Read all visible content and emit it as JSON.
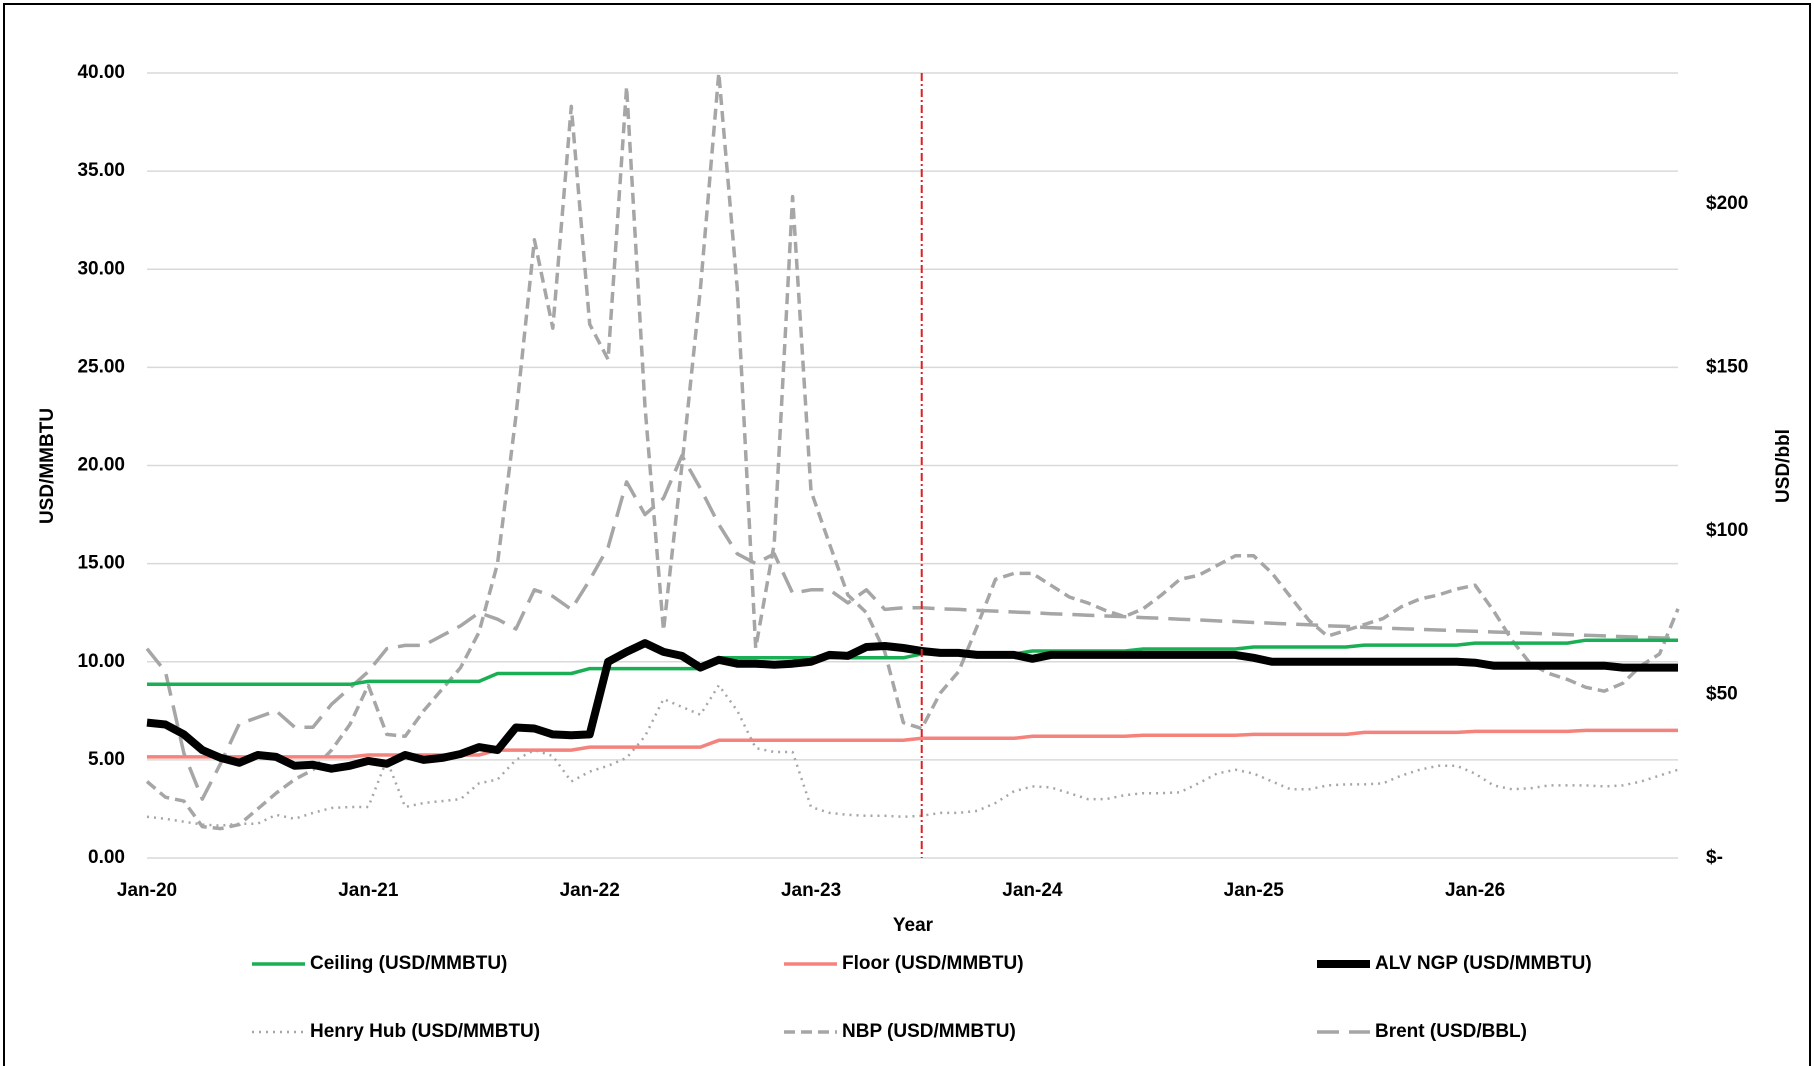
{
  "chart_data": {
    "type": "line",
    "x_label": "Year",
    "y_label": "USD/MMBTU",
    "y2_label": "USD/bbl",
    "categories": [
      "Jan-20",
      null,
      null,
      null,
      null,
      null,
      null,
      null,
      null,
      null,
      null,
      null,
      "Jan-21",
      null,
      null,
      null,
      null,
      null,
      null,
      null,
      null,
      null,
      null,
      null,
      "Jan-22",
      null,
      null,
      null,
      null,
      null,
      null,
      null,
      null,
      null,
      null,
      null,
      "Jan-23",
      null,
      null,
      null,
      null,
      null,
      null,
      null,
      null,
      null,
      null,
      null,
      "Jan-24",
      null,
      null,
      null,
      null,
      null,
      null,
      null,
      null,
      null,
      null,
      null,
      "Jan-25",
      null,
      null,
      null,
      null,
      null,
      null,
      null,
      null,
      null,
      null,
      null,
      "Jan-26",
      null,
      null,
      null,
      null,
      null,
      null,
      null,
      null,
      null,
      null,
      null
    ],
    "ylim": [
      0,
      40
    ],
    "yticks": [
      {
        "value": 0,
        "label": "0.00"
      },
      {
        "value": 5,
        "label": "5.00"
      },
      {
        "value": 10,
        "label": "10.00"
      },
      {
        "value": 15,
        "label": "15.00"
      },
      {
        "value": 20,
        "label": "20.00"
      },
      {
        "value": 25,
        "label": "25.00"
      },
      {
        "value": 30,
        "label": "30.00"
      },
      {
        "value": 35,
        "label": "35.00"
      },
      {
        "value": 40,
        "label": "40.00"
      }
    ],
    "y2lim": [
      0,
      240
    ],
    "y2ticks": [
      {
        "value": 0,
        "label": "$-"
      },
      {
        "value": 50,
        "label": "$50"
      },
      {
        "value": 100,
        "label": "$100"
      },
      {
        "value": 150,
        "label": "$150"
      },
      {
        "value": 200,
        "label": "$200"
      }
    ],
    "grid": true,
    "reference_line": {
      "category_index": 42,
      "color": "#e02020"
    },
    "series": [
      {
        "name": "Ceiling (USD/MMBTU)",
        "color": "#1aaf54",
        "line_style": "solid",
        "values": [
          8.85,
          8.85,
          8.85,
          8.85,
          8.85,
          8.85,
          8.85,
          8.85,
          8.85,
          8.85,
          8.85,
          8.85,
          9.0,
          9.0,
          9.0,
          9.0,
          9.0,
          9.0,
          9.0,
          9.4,
          9.4,
          9.4,
          9.4,
          9.4,
          9.65,
          9.65,
          9.65,
          9.65,
          9.65,
          9.65,
          9.65,
          10.2,
          10.2,
          10.2,
          10.2,
          10.2,
          10.2,
          10.2,
          10.2,
          10.2,
          10.2,
          10.2,
          10.4,
          10.4,
          10.4,
          10.4,
          10.4,
          10.4,
          10.55,
          10.55,
          10.55,
          10.55,
          10.55,
          10.55,
          10.65,
          10.65,
          10.65,
          10.65,
          10.65,
          10.65,
          10.75,
          10.75,
          10.75,
          10.75,
          10.75,
          10.75,
          10.85,
          10.85,
          10.85,
          10.85,
          10.85,
          10.85,
          10.95,
          10.95,
          10.95,
          10.95,
          10.95,
          10.95,
          11.1,
          11.1,
          11.1,
          11.1,
          11.1,
          11.1
        ]
      },
      {
        "name": "Floor (USD/MMBTU)",
        "color": "#f4837d",
        "line_style": "solid",
        "values": [
          5.15,
          5.15,
          5.15,
          5.15,
          5.15,
          5.15,
          5.15,
          5.15,
          5.15,
          5.15,
          5.15,
          5.15,
          5.25,
          5.25,
          5.25,
          5.25,
          5.25,
          5.25,
          5.25,
          5.5,
          5.5,
          5.5,
          5.5,
          5.5,
          5.65,
          5.65,
          5.65,
          5.65,
          5.65,
          5.65,
          5.65,
          6.0,
          6.0,
          6.0,
          6.0,
          6.0,
          6.0,
          6.0,
          6.0,
          6.0,
          6.0,
          6.0,
          6.1,
          6.1,
          6.1,
          6.1,
          6.1,
          6.1,
          6.2,
          6.2,
          6.2,
          6.2,
          6.2,
          6.2,
          6.25,
          6.25,
          6.25,
          6.25,
          6.25,
          6.25,
          6.3,
          6.3,
          6.3,
          6.3,
          6.3,
          6.3,
          6.4,
          6.4,
          6.4,
          6.4,
          6.4,
          6.4,
          6.45,
          6.45,
          6.45,
          6.45,
          6.45,
          6.45,
          6.5,
          6.5,
          6.5,
          6.5,
          6.5,
          6.5
        ]
      },
      {
        "name": "ALV NGP  (USD/MMBTU)",
        "color": "#000000",
        "line_style": "thick",
        "values": [
          6.9,
          6.8,
          6.3,
          5.5,
          5.1,
          4.85,
          5.25,
          5.15,
          4.7,
          4.75,
          4.55,
          4.7,
          4.95,
          4.8,
          5.25,
          5.0,
          5.1,
          5.3,
          5.65,
          5.5,
          6.65,
          6.6,
          6.3,
          6.25,
          6.3,
          10.0,
          10.5,
          10.95,
          10.5,
          10.3,
          9.7,
          10.1,
          9.9,
          9.9,
          9.85,
          9.9,
          10.0,
          10.35,
          10.3,
          10.75,
          10.8,
          10.7,
          10.55,
          10.45,
          10.45,
          10.35,
          10.35,
          10.35,
          10.15,
          10.35,
          10.35,
          10.35,
          10.35,
          10.35,
          10.35,
          10.35,
          10.35,
          10.35,
          10.35,
          10.35,
          10.2,
          10.0,
          10.0,
          10.0,
          10.0,
          10.0,
          10.0,
          10.0,
          10.0,
          10.0,
          10.0,
          10.0,
          9.95,
          9.8,
          9.8,
          9.8,
          9.8,
          9.8,
          9.8,
          9.8,
          9.7,
          9.7,
          9.7,
          9.7
        ]
      },
      {
        "name": "Henry Hub (USD/MMBTU)",
        "color": "#a6a6a6",
        "line_style": "dotted",
        "values": [
          2.1,
          2.0,
          1.85,
          1.7,
          1.65,
          1.75,
          1.75,
          2.2,
          2.0,
          2.3,
          2.55,
          2.6,
          2.6,
          5.0,
          2.6,
          2.8,
          2.9,
          3.0,
          3.8,
          4.0,
          5.0,
          5.5,
          5.2,
          3.9,
          4.4,
          4.7,
          5.1,
          6.2,
          8.1,
          7.7,
          7.3,
          8.8,
          7.5,
          5.6,
          5.4,
          5.4,
          2.6,
          2.3,
          2.2,
          2.15,
          2.15,
          2.1,
          2.15,
          2.3,
          2.3,
          2.4,
          2.8,
          3.4,
          3.65,
          3.6,
          3.3,
          3.0,
          3.0,
          3.2,
          3.3,
          3.3,
          3.35,
          3.8,
          4.3,
          4.5,
          4.3,
          3.9,
          3.5,
          3.5,
          3.7,
          3.75,
          3.75,
          3.8,
          4.2,
          4.5,
          4.7,
          4.7,
          4.3,
          3.7,
          3.5,
          3.55,
          3.7,
          3.7,
          3.7,
          3.65,
          3.7,
          3.9,
          4.2,
          4.5
        ]
      },
      {
        "name": "NBP (USD/MMBTU)",
        "color": "#a6a6a6",
        "line_style": "dashed",
        "values": [
          3.9,
          3.1,
          2.9,
          1.6,
          1.5,
          1.7,
          2.5,
          3.3,
          4.0,
          4.5,
          5.5,
          6.8,
          8.8,
          6.3,
          6.2,
          7.5,
          8.6,
          9.7,
          11.5,
          15.0,
          22.5,
          31.5,
          27,
          38.3,
          27.2,
          25.4,
          39.3,
          23,
          11.6,
          20,
          29,
          40,
          29,
          10.7,
          16,
          33.7,
          18.7,
          16,
          13.4,
          12.5,
          10.5,
          6.9,
          6.6,
          8.4,
          9.5,
          11.8,
          14.2,
          14.5,
          14.5,
          13.9,
          13.3,
          13.0,
          12.6,
          12.3,
          12.7,
          13.4,
          14.2,
          14.4,
          14.9,
          15.4,
          15.4,
          14.5,
          13.3,
          12.1,
          11.3,
          11.6,
          11.9,
          12.2,
          12.8,
          13.2,
          13.4,
          13.7,
          13.9,
          12.6,
          11.1,
          9.9,
          9.4,
          9.1,
          8.7,
          8.5,
          8.9,
          9.8,
          10.4,
          12.7
        ]
      },
      {
        "name": "Brent (USD/BBL)",
        "color": "#a6a6a6",
        "line_style": "long-dashed",
        "axis": "y2",
        "values": [
          64,
          57,
          32,
          18,
          29,
          41,
          43,
          45,
          40,
          40,
          47,
          52,
          57,
          64,
          65,
          65,
          68,
          71,
          75,
          73,
          70,
          82,
          80,
          76,
          85,
          95,
          115,
          105,
          110,
          123,
          113,
          102,
          93,
          90,
          93,
          81,
          82,
          82,
          78,
          82,
          76,
          76.5,
          76.5,
          76.2,
          76,
          75.7,
          75.5,
          75.2,
          75,
          74.7,
          74.5,
          74.2,
          74,
          73.8,
          73.5,
          73.3,
          73,
          72.8,
          72.5,
          72.3,
          72,
          71.8,
          71.5,
          71.3,
          71,
          70.8,
          70.5,
          70.3,
          70.1,
          69.9,
          69.7,
          69.5,
          69.3,
          69.1,
          68.9,
          68.7,
          68.5,
          68.3,
          68.1,
          67.9,
          67.7,
          67.5,
          67.3,
          67.1
        ]
      }
    ]
  }
}
